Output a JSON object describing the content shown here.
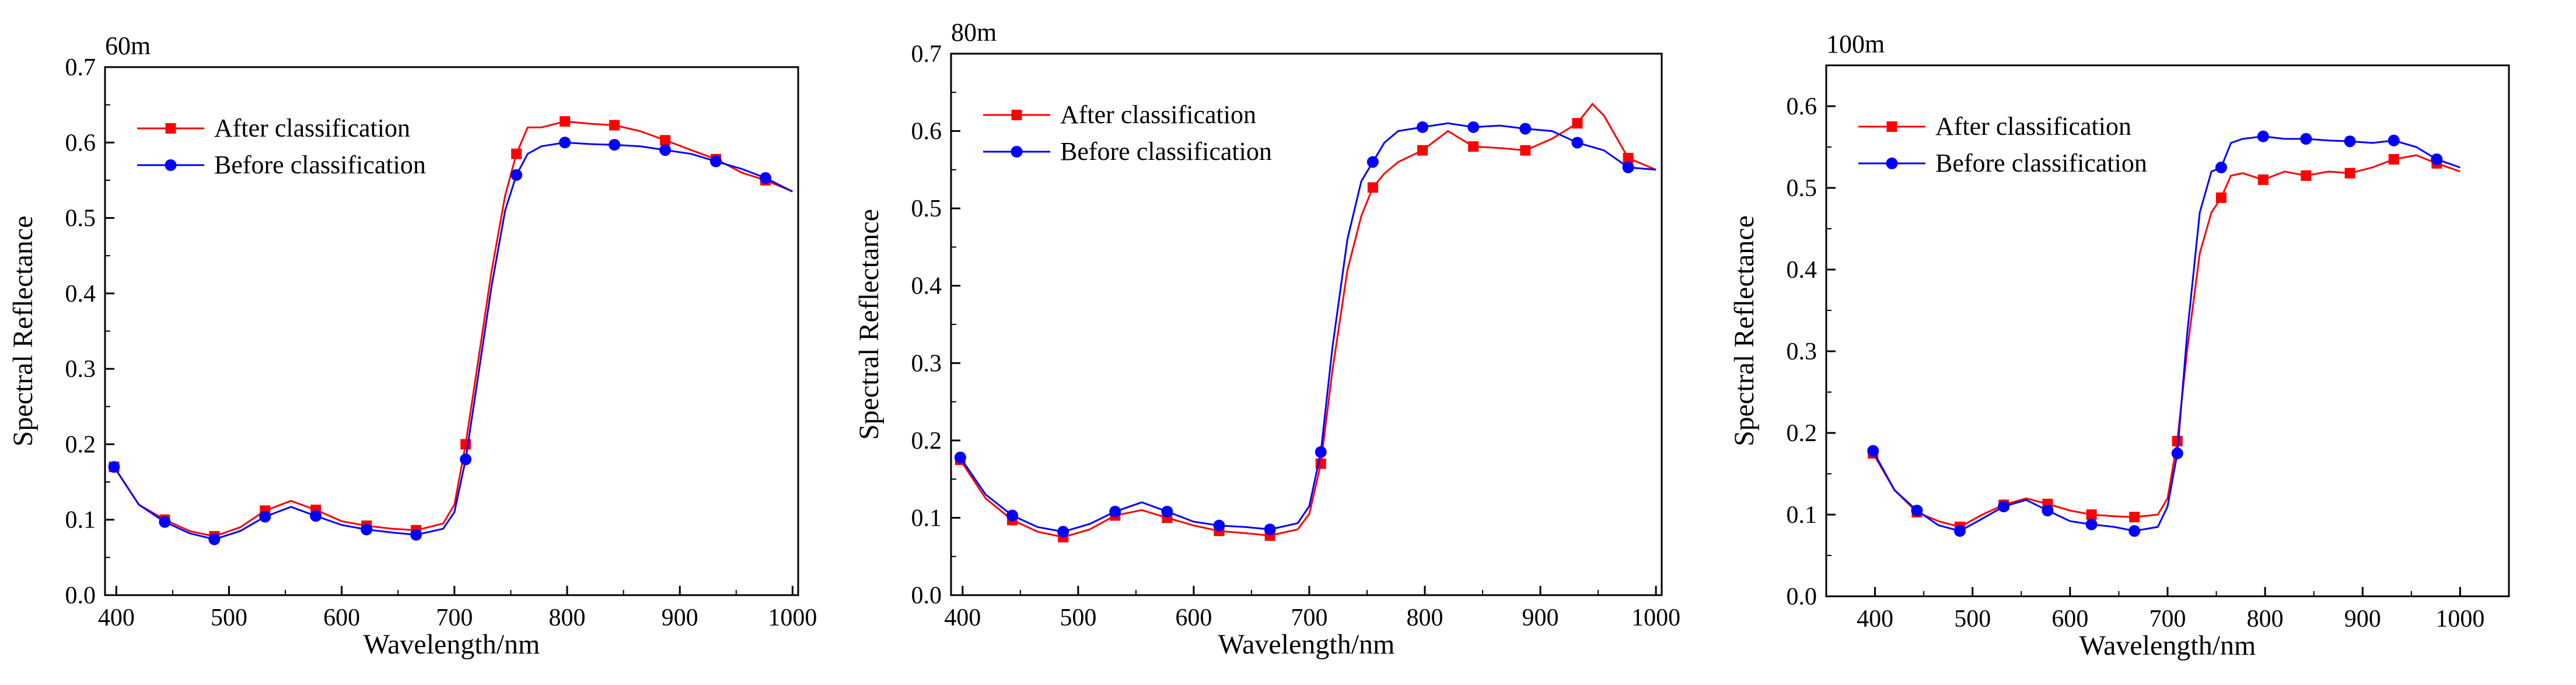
{
  "figure": {
    "panels": [
      "60m",
      "80m",
      "100m"
    ]
  },
  "colors": {
    "after": "#ff0000",
    "before": "#0000ff"
  },
  "chart_data": [
    {
      "type": "line",
      "title": "60m",
      "xlabel": "Wavelength/nm",
      "ylabel": "Spectral Reflectance",
      "xlim": [
        390,
        1005
      ],
      "ylim": [
        0.0,
        0.7
      ],
      "xticks": [
        400,
        500,
        600,
        700,
        800,
        900,
        1000
      ],
      "yticks": [
        0.0,
        0.1,
        0.2,
        0.3,
        0.4,
        0.5,
        0.6,
        0.7
      ],
      "legend": "top-left",
      "series": [
        {
          "name": "After classification",
          "marker": "square",
          "x": [
            398,
            420,
            443,
            465,
            487,
            510,
            532,
            555,
            577,
            600,
            622,
            645,
            666,
            690,
            700,
            710,
            720,
            733,
            745,
            755,
            765,
            777,
            798,
            820,
            842,
            865,
            887,
            910,
            932,
            955,
            976,
            1000
          ],
          "y": [
            0.17,
            0.12,
            0.1,
            0.085,
            0.078,
            0.09,
            0.112,
            0.125,
            0.113,
            0.098,
            0.092,
            0.088,
            0.086,
            0.095,
            0.12,
            0.2,
            0.3,
            0.43,
            0.53,
            0.585,
            0.62,
            0.62,
            0.628,
            0.625,
            0.623,
            0.615,
            0.603,
            0.59,
            0.578,
            0.56,
            0.55,
            0.535
          ],
          "marker_x": [
            398,
            443,
            487,
            532,
            577,
            622,
            666,
            710,
            755,
            798,
            842,
            887,
            932,
            976
          ]
        },
        {
          "name": "Before classification",
          "marker": "circle",
          "x": [
            398,
            420,
            443,
            465,
            487,
            510,
            532,
            555,
            577,
            600,
            622,
            645,
            666,
            690,
            700,
            710,
            720,
            733,
            745,
            755,
            765,
            777,
            798,
            820,
            842,
            865,
            887,
            910,
            932,
            955,
            976,
            1000
          ],
          "y": [
            0.17,
            0.12,
            0.097,
            0.082,
            0.074,
            0.085,
            0.104,
            0.117,
            0.105,
            0.093,
            0.087,
            0.083,
            0.08,
            0.088,
            0.11,
            0.18,
            0.28,
            0.41,
            0.51,
            0.557,
            0.585,
            0.595,
            0.6,
            0.598,
            0.597,
            0.595,
            0.59,
            0.585,
            0.575,
            0.565,
            0.553,
            0.535
          ],
          "marker_x": [
            398,
            443,
            487,
            532,
            577,
            622,
            666,
            710,
            755,
            798,
            842,
            887,
            932,
            976
          ]
        }
      ]
    },
    {
      "type": "line",
      "title": "80m",
      "xlabel": "Wavelength/nm",
      "ylabel": "Spectral Reflectance",
      "xlim": [
        390,
        1005
      ],
      "ylim": [
        0.0,
        0.7
      ],
      "xticks": [
        400,
        500,
        600,
        700,
        800,
        900,
        1000
      ],
      "yticks": [
        0.0,
        0.1,
        0.2,
        0.3,
        0.4,
        0.5,
        0.6,
        0.7
      ],
      "legend": "top-left",
      "series": [
        {
          "name": "After classification",
          "marker": "square",
          "x": [
            398,
            420,
            443,
            465,
            487,
            510,
            532,
            555,
            577,
            600,
            622,
            645,
            666,
            690,
            700,
            710,
            720,
            733,
            745,
            755,
            765,
            777,
            798,
            820,
            842,
            865,
            887,
            910,
            932,
            945,
            955,
            976,
            1000
          ],
          "y": [
            0.175,
            0.125,
            0.097,
            0.082,
            0.075,
            0.085,
            0.103,
            0.11,
            0.1,
            0.09,
            0.083,
            0.08,
            0.077,
            0.085,
            0.105,
            0.17,
            0.29,
            0.42,
            0.49,
            0.527,
            0.545,
            0.56,
            0.575,
            0.6,
            0.58,
            0.578,
            0.575,
            0.59,
            0.61,
            0.635,
            0.62,
            0.565,
            0.55
          ],
          "marker_x": [
            398,
            443,
            487,
            532,
            577,
            622,
            666,
            710,
            755,
            798,
            842,
            887,
            932,
            976
          ]
        },
        {
          "name": "Before classification",
          "marker": "circle",
          "x": [
            398,
            420,
            443,
            465,
            487,
            510,
            532,
            555,
            577,
            600,
            622,
            645,
            666,
            690,
            700,
            710,
            720,
            733,
            745,
            755,
            765,
            777,
            798,
            820,
            842,
            865,
            887,
            910,
            932,
            955,
            976,
            1000
          ],
          "y": [
            0.178,
            0.13,
            0.103,
            0.088,
            0.082,
            0.092,
            0.108,
            0.12,
            0.108,
            0.095,
            0.09,
            0.088,
            0.085,
            0.093,
            0.115,
            0.185,
            0.32,
            0.46,
            0.535,
            0.56,
            0.585,
            0.6,
            0.605,
            0.61,
            0.605,
            0.607,
            0.603,
            0.6,
            0.585,
            0.575,
            0.553,
            0.55
          ],
          "marker_x": [
            398,
            443,
            487,
            532,
            577,
            622,
            666,
            710,
            755,
            798,
            842,
            887,
            932,
            976
          ]
        }
      ]
    },
    {
      "type": "line",
      "title": "100m",
      "xlabel": "Wavelength/nm",
      "ylabel": "Spectral Reflectance",
      "xlim": [
        350,
        1050
      ],
      "ylim": [
        0.0,
        0.65
      ],
      "xticks": [
        400,
        500,
        600,
        700,
        800,
        900,
        1000
      ],
      "yticks": [
        0.0,
        0.1,
        0.2,
        0.3,
        0.4,
        0.5,
        0.6
      ],
      "legend": "top-left",
      "series": [
        {
          "name": "After classification",
          "marker": "square",
          "x": [
            398,
            420,
            443,
            465,
            487,
            510,
            532,
            555,
            577,
            600,
            622,
            645,
            666,
            690,
            700,
            710,
            720,
            733,
            745,
            755,
            765,
            777,
            798,
            820,
            842,
            865,
            887,
            910,
            932,
            955,
            976,
            1000
          ],
          "y": [
            0.175,
            0.13,
            0.103,
            0.092,
            0.085,
            0.1,
            0.112,
            0.12,
            0.113,
            0.105,
            0.1,
            0.098,
            0.097,
            0.1,
            0.12,
            0.19,
            0.3,
            0.42,
            0.47,
            0.488,
            0.515,
            0.518,
            0.51,
            0.52,
            0.515,
            0.52,
            0.518,
            0.525,
            0.535,
            0.54,
            0.53,
            0.52
          ],
          "marker_x": [
            398,
            443,
            487,
            532,
            577,
            622,
            666,
            710,
            755,
            798,
            842,
            887,
            932,
            976
          ]
        },
        {
          "name": "Before classification",
          "marker": "circle",
          "x": [
            398,
            420,
            443,
            465,
            487,
            510,
            532,
            555,
            577,
            600,
            622,
            645,
            666,
            690,
            700,
            710,
            720,
            733,
            745,
            755,
            765,
            777,
            798,
            820,
            842,
            865,
            887,
            910,
            932,
            955,
            976,
            1000
          ],
          "y": [
            0.178,
            0.13,
            0.105,
            0.087,
            0.08,
            0.095,
            0.11,
            0.118,
            0.105,
            0.092,
            0.088,
            0.085,
            0.08,
            0.085,
            0.11,
            0.175,
            0.32,
            0.47,
            0.52,
            0.525,
            0.555,
            0.56,
            0.563,
            0.56,
            0.56,
            0.558,
            0.557,
            0.555,
            0.558,
            0.55,
            0.535,
            0.525
          ],
          "marker_x": [
            398,
            443,
            487,
            532,
            577,
            622,
            666,
            710,
            755,
            798,
            842,
            887,
            932,
            976
          ]
        }
      ]
    }
  ]
}
